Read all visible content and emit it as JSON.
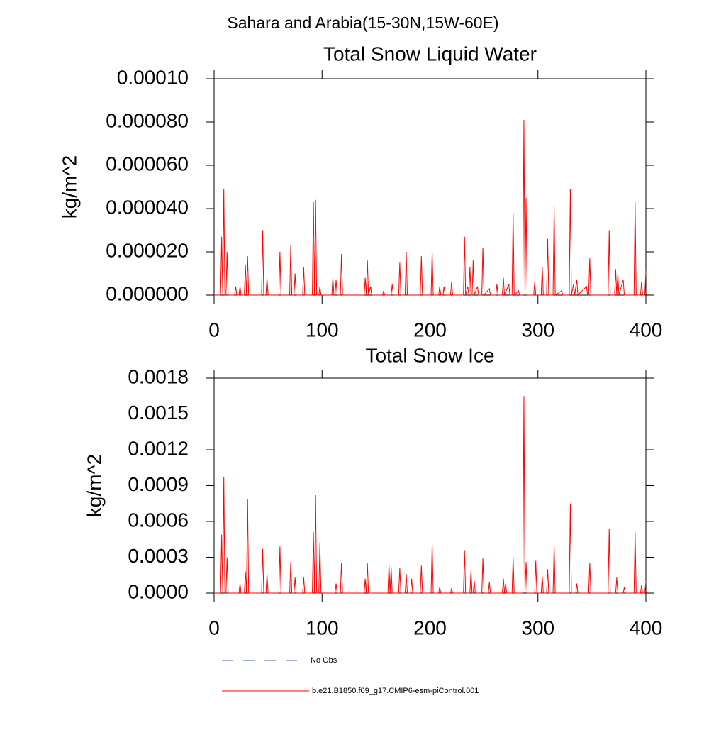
{
  "title": "Sahara and Arabia(15-30N,15W-60E)",
  "legend": [
    {
      "label": "No Obs",
      "color": "#4a5a9a",
      "style": "dashed"
    }
  ],
  "chart_data": [
    {
      "type": "line",
      "title": "Total Snow Liquid Water",
      "ylabel": "kg/m^2",
      "x": [
        0,
        6,
        7,
        8,
        9,
        10,
        11,
        12,
        13,
        19,
        20,
        21,
        23,
        24,
        25,
        28,
        29,
        30,
        31,
        32,
        44,
        45,
        46,
        48,
        49,
        50,
        60,
        61,
        62,
        70,
        71,
        72,
        74,
        75,
        76,
        82,
        83,
        84,
        91,
        92,
        93,
        94,
        95,
        97,
        98,
        99,
        109,
        110,
        111,
        112,
        113,
        114,
        117,
        118,
        119,
        139,
        140,
        141,
        142,
        143,
        145,
        146,
        156,
        157,
        158,
        164,
        165,
        166,
        171,
        172,
        173,
        177,
        178,
        179,
        191,
        192,
        193,
        201,
        202,
        203,
        208,
        209,
        210,
        212,
        213,
        214,
        219,
        220,
        221,
        231,
        232,
        233,
        235,
        236,
        237,
        238,
        239,
        240,
        241,
        244,
        245,
        248,
        249,
        250,
        255,
        256,
        261,
        262,
        263,
        267,
        268,
        269,
        273,
        274,
        276,
        277,
        278,
        282,
        283,
        286,
        287,
        288,
        289,
        290,
        296,
        297,
        298,
        303,
        304,
        305,
        308,
        309,
        310,
        314,
        315,
        316,
        322,
        323,
        329,
        330,
        331,
        333,
        334,
        336,
        337,
        345,
        346,
        347,
        348,
        349,
        365,
        366,
        367,
        371,
        372,
        373,
        374,
        375,
        379,
        380,
        389,
        390,
        391,
        395,
        396,
        397,
        399,
        400
      ],
      "series": [
        {
          "name": "b.e21.B1850.f09_g17.CMIP6-esm-piControl.001",
          "color": "#ff0000",
          "values": [
            0,
            0,
            2.7e-05,
            0,
            4.9e-05,
            0,
            0,
            2e-05,
            0,
            0,
            4e-06,
            0,
            0,
            4e-06,
            0,
            0,
            1.4e-05,
            0,
            1.8e-05,
            0,
            0,
            3e-05,
            0,
            0,
            8e-06,
            0,
            0,
            2e-05,
            0,
            0,
            2.3e-05,
            0,
            0,
            1e-05,
            0,
            0,
            1.3e-05,
            0,
            0,
            4.3e-05,
            0,
            4.4e-05,
            0,
            0,
            4e-06,
            0,
            0,
            8e-06,
            0,
            0,
            7e-06,
            0,
            0,
            1.9e-05,
            0,
            0,
            8e-06,
            0,
            1.6e-05,
            0,
            4e-06,
            0,
            0,
            2e-06,
            0,
            0,
            5e-06,
            0,
            0,
            1.5e-05,
            0,
            0,
            2e-05,
            0,
            0,
            1.8e-05,
            0,
            0,
            2e-05,
            0,
            0,
            4e-06,
            0,
            0,
            4e-06,
            0,
            0,
            6e-06,
            0,
            0,
            2.7e-05,
            0,
            4e-06,
            0,
            1.3e-05,
            0,
            0,
            1.6e-05,
            0,
            4e-06,
            0,
            0,
            2.2e-05,
            0,
            3e-06,
            0,
            0,
            5e-06,
            0,
            0,
            8e-06,
            0,
            5e-06,
            0,
            0,
            3.8e-05,
            0,
            2e-06,
            0,
            0,
            8.1e-05,
            0,
            4.5e-05,
            0,
            0,
            6e-06,
            0,
            0,
            1.3e-05,
            0,
            0,
            2.6e-05,
            0,
            0,
            4.1e-05,
            0,
            2e-06,
            0,
            0,
            4.9e-05,
            0,
            5e-06,
            0,
            7e-06,
            0,
            4e-06,
            0,
            0,
            1.7e-05,
            0,
            0,
            3e-05,
            0,
            0,
            1.2e-05,
            0,
            1e-05,
            0,
            7e-06,
            0,
            0,
            4.3e-05,
            0,
            0,
            6e-06,
            0,
            0,
            1.1e-05
          ]
        }
      ],
      "xlim": [
        0,
        400
      ],
      "xticks": [
        0,
        100,
        200,
        300,
        400
      ],
      "ylim": [
        0,
        0.0001
      ],
      "yticks": [
        {
          "value": 0,
          "label": "0.000000"
        },
        {
          "value": 2e-05,
          "label": "0.000020"
        },
        {
          "value": 4e-05,
          "label": "0.000040"
        },
        {
          "value": 6e-05,
          "label": "0.000060"
        },
        {
          "value": 8e-05,
          "label": "0.000080"
        },
        {
          "value": 0.0001,
          "label": "0.00010"
        }
      ]
    },
    {
      "type": "line",
      "title": "Total Snow Ice",
      "ylabel": "kg/m^2",
      "x": [
        0,
        6,
        7,
        8,
        9,
        10,
        11,
        12,
        13,
        23,
        24,
        25,
        28,
        29,
        30,
        31,
        32,
        44,
        45,
        46,
        48,
        49,
        50,
        60,
        61,
        62,
        70,
        71,
        72,
        74,
        75,
        76,
        82,
        83,
        84,
        91,
        92,
        93,
        94,
        95,
        97,
        98,
        99,
        112,
        113,
        114,
        117,
        118,
        119,
        139,
        140,
        141,
        142,
        143,
        161,
        162,
        163,
        164,
        165,
        171,
        172,
        173,
        177,
        178,
        179,
        182,
        183,
        184,
        191,
        192,
        193,
        201,
        202,
        203,
        208,
        209,
        210,
        219,
        220,
        221,
        231,
        232,
        233,
        237,
        238,
        239,
        240,
        241,
        242,
        248,
        249,
        250,
        254,
        255,
        256,
        267,
        268,
        269,
        270,
        271,
        276,
        277,
        278,
        286,
        287,
        288,
        289,
        290,
        297,
        298,
        299,
        303,
        304,
        305,
        308,
        309,
        310,
        314,
        315,
        316,
        329,
        330,
        331,
        335,
        336,
        337,
        347,
        348,
        349,
        365,
        366,
        367,
        372,
        373,
        374,
        379,
        380,
        381,
        389,
        390,
        391,
        395,
        396,
        397,
        399,
        400
      ],
      "series": [
        {
          "name": "b.e21.B1850.f09_g17.CMIP6-esm-piControl.001",
          "color": "#ff0000",
          "values": [
            0,
            0,
            0.00049,
            0,
            0.00097,
            0,
            0,
            0.0003,
            0,
            0,
            8e-05,
            0,
            0,
            0.00018,
            0,
            0.00079,
            0,
            0,
            0.00037,
            0,
            0,
            0.00016,
            0,
            0,
            0.00039,
            0,
            0,
            0.00026,
            0,
            0,
            0.00013,
            0,
            0,
            0.00013,
            0,
            0,
            0.00051,
            0,
            0.00082,
            0,
            0,
            0.00042,
            0,
            0,
            8e-05,
            0,
            0,
            0.00025,
            0,
            0,
            0.00012,
            0,
            0.00025,
            0,
            0,
            0.00024,
            0,
            0.00022,
            0,
            0,
            0.00021,
            0,
            0,
            0.00016,
            0,
            0,
            0.00012,
            0,
            0,
            0.00023,
            0,
            0,
            0.00041,
            0,
            0,
            5e-05,
            0,
            0,
            4e-05,
            0,
            0,
            0.00036,
            0,
            0,
            0.00019,
            0,
            0,
            0.0001,
            0,
            0,
            0.00029,
            0,
            0,
            9e-05,
            0,
            0,
            0.00012,
            0,
            8e-05,
            0,
            0,
            0.0003,
            0,
            0,
            0.00165,
            0,
            0.00026,
            0,
            0,
            0.00027,
            0,
            0,
            0.00014,
            0,
            0,
            0.0002,
            0,
            0,
            0.0004,
            0,
            0,
            0.00075,
            0,
            0,
            8e-05,
            0,
            0,
            0.00025,
            0,
            0,
            0.00054,
            0,
            0,
            0.00013,
            0,
            0,
            5e-05,
            0,
            0,
            0.00051,
            0,
            0,
            7e-05,
            0,
            0,
            0.0001
          ]
        }
      ],
      "xlim": [
        0,
        400
      ],
      "xticks": [
        0,
        100,
        200,
        300,
        400
      ],
      "ylim": [
        0,
        0.0018
      ],
      "yticks": [
        {
          "value": 0,
          "label": "0.0000"
        },
        0.0003,
        0.0006,
        0.0009,
        0.0012,
        0.0015,
        0.0018
      ]
    }
  ]
}
